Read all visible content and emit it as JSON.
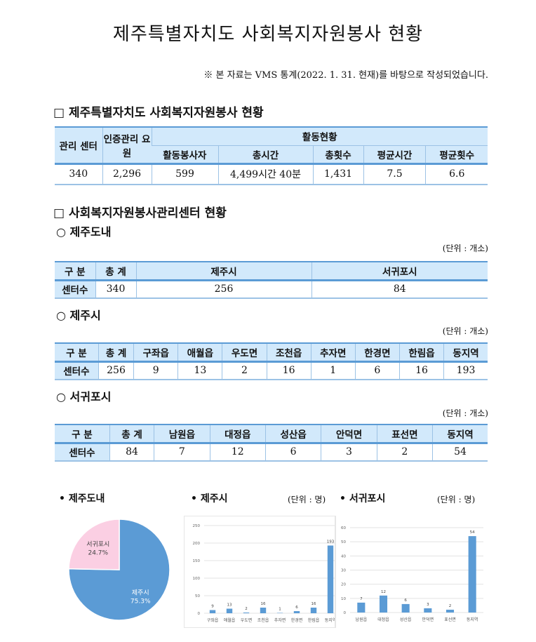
{
  "title": "제주특별자치도 사회복지자원봉사 현황",
  "note": "※ 본 자료는 VMS 통계(2022. 1. 31. 현재)를 바탕으로 작성되었습니다.",
  "section1": {
    "heading": "□ 제주특별자치도 사회복지자원봉사 현황",
    "headers": {
      "center": "관리 센터",
      "staff": "인증관리 요원",
      "activity": "활동현황",
      "cols": [
        "활동봉사자",
        "총시간",
        "총횟수",
        "평균시간",
        "평균횟수"
      ]
    },
    "row": [
      "340",
      "2,296",
      "599",
      "4,499시간 40분",
      "1,431",
      "7.5",
      "6.6"
    ]
  },
  "section2": {
    "heading": "□ 사회복지자원봉사관리센터 현황",
    "unit": "(단위 : 개소)",
    "province": {
      "heading": "○ 제주도내",
      "headers": [
        "구 분",
        "총 계",
        "제주시",
        "서귀포시"
      ],
      "row": [
        "센터수",
        "340",
        "256",
        "84"
      ]
    },
    "jeju": {
      "heading": "○ 제주시",
      "headers": [
        "구 분",
        "총 계",
        "구좌읍",
        "애월읍",
        "우도면",
        "조천읍",
        "추자면",
        "한경면",
        "한림읍",
        "동지역"
      ],
      "row": [
        "센터수",
        "256",
        "9",
        "13",
        "2",
        "16",
        "1",
        "6",
        "16",
        "193"
      ]
    },
    "seogwipo": {
      "heading": "○ 서귀포시",
      "headers": [
        "구 분",
        "총 계",
        "남원읍",
        "대정읍",
        "성산읍",
        "안덕면",
        "표선면",
        "동지역"
      ],
      "row": [
        "센터수",
        "84",
        "7",
        "12",
        "6",
        "3",
        "2",
        "54"
      ]
    }
  },
  "colors": {
    "blue": "#5b9bd5",
    "pink": "#fbcfe3",
    "header": "#d2e9fb"
  },
  "chart_data": [
    {
      "type": "pie",
      "title": "• 제주도내",
      "slices": [
        {
          "label": "제주시",
          "value": 75.3,
          "text": "75.3%"
        },
        {
          "label": "서귀포시",
          "value": 24.7,
          "text": "24.7%"
        }
      ]
    },
    {
      "type": "bar",
      "title": "• 제주시",
      "unit": "(단위 : 명)",
      "categories": [
        "구좌읍",
        "애월읍",
        "우도면",
        "조천읍",
        "추자면",
        "한경면",
        "한림읍",
        "동지역"
      ],
      "values": [
        9,
        13,
        2,
        16,
        1,
        6,
        16,
        193
      ],
      "ylim": [
        0,
        250
      ],
      "yticks": [
        0,
        50,
        100,
        150,
        200,
        250
      ],
      "grid": true
    },
    {
      "type": "bar",
      "title": "• 서귀포시",
      "unit": "(단위 : 명)",
      "categories": [
        "남원읍",
        "대정읍",
        "성산읍",
        "안덕면",
        "표선면",
        "동지역"
      ],
      "values": [
        7,
        12,
        6,
        3,
        2,
        54
      ],
      "ylim": [
        0,
        60
      ],
      "yticks": [
        0,
        10,
        20,
        30,
        40,
        50,
        60
      ],
      "grid": true
    }
  ]
}
